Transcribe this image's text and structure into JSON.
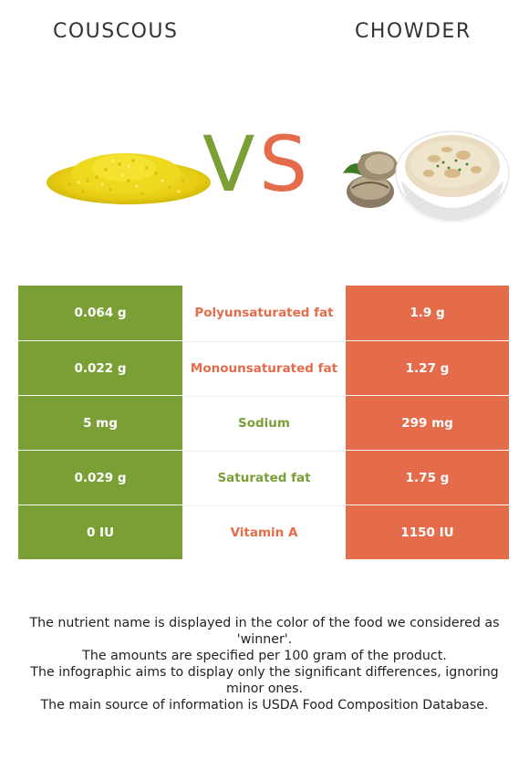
{
  "food_left": {
    "name": "COUSCOUS",
    "color": "#7a9f35"
  },
  "food_right": {
    "name": "CHOWDER",
    "color": "#e46c4b"
  },
  "vs": {
    "v": "V",
    "s": "S"
  },
  "rows": [
    {
      "left": "0.064 g",
      "nutrient": "Polyunsaturated fat",
      "right": "1.9 g",
      "winner": "right"
    },
    {
      "left": "0.022 g",
      "nutrient": "Monounsaturated fat",
      "right": "1.27 g",
      "winner": "right"
    },
    {
      "left": "5 mg",
      "nutrient": "Sodium",
      "right": "299 mg",
      "winner": "left"
    },
    {
      "left": "0.029 g",
      "nutrient": "Saturated fat",
      "right": "1.75 g",
      "winner": "left"
    },
    {
      "left": "0 IU",
      "nutrient": "Vitamin A",
      "right": "1150 IU",
      "winner": "right"
    }
  ],
  "footnotes": [
    "The nutrient name is displayed in the color of the food we considered as 'winner'.",
    "The amounts are specified per 100 gram of the product.",
    "The infographic aims to display only the significant differences, ignoring minor ones.",
    "The main source of information is USDA Food Composition Database."
  ],
  "icons": {
    "left_image": "couscous-image",
    "right_image": "chowder-image"
  }
}
